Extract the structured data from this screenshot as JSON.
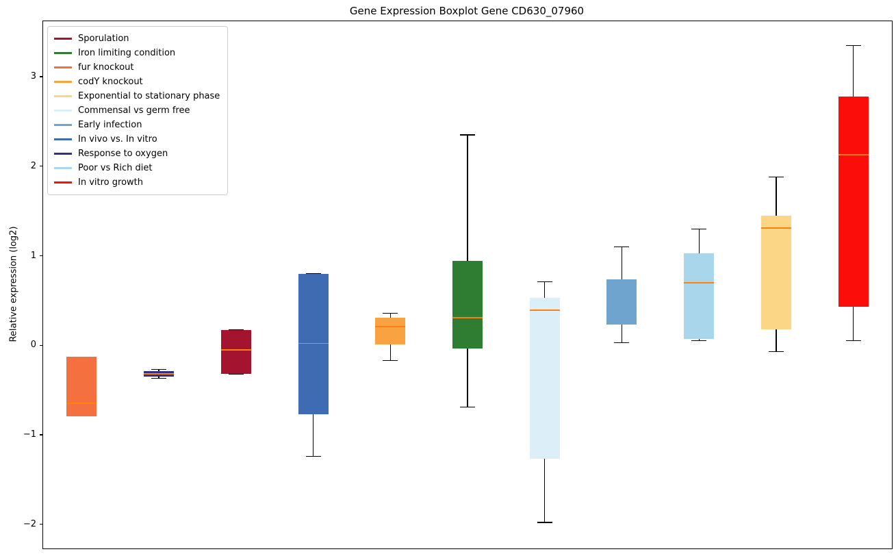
{
  "chart_data": {
    "type": "boxplot",
    "title": "Gene Expression Boxplot Gene CD630_07960",
    "ylabel": "Relative expression (log2)",
    "ylim": [
      -2.27,
      3.62
    ],
    "yticks": [
      -2,
      -1,
      0,
      1,
      2,
      3
    ],
    "grid": false,
    "legend_position": "upper left",
    "median_color": "#ff7f0e",
    "whisker_color": "#000000",
    "legend": [
      {
        "label": "Sporulation",
        "color": "#A41330"
      },
      {
        "label": "Iron limiting condition",
        "color": "#2E7D32"
      },
      {
        "label": "fur knockout",
        "color": "#F4713F"
      },
      {
        "label": "codY knockout",
        "color": "#F9A242"
      },
      {
        "label": "Exponential to stationary phase",
        "color": "#FBD687"
      },
      {
        "label": "Commensal vs germ free",
        "color": "#DCEFF8"
      },
      {
        "label": "Early infection",
        "color": "#6FA4CE"
      },
      {
        "label": "In vivo vs. In vitro",
        "color": "#3F6BB3"
      },
      {
        "label": "Response to oxygen",
        "color": "#2F3187"
      },
      {
        "label": "Poor vs Rich diet",
        "color": "#AAD6EB"
      },
      {
        "label": "In vitro growth",
        "color": "#FB0D0A"
      }
    ],
    "boxes": [
      {
        "label": "fur knockout",
        "color": "#F4713F",
        "whisker_low": -0.79,
        "q1": -0.79,
        "median": -0.65,
        "q3": -0.13,
        "whisker_high": -0.13
      },
      {
        "label": "Response to oxygen",
        "color": "#2F3187",
        "whisker_low": -0.37,
        "q1": -0.35,
        "median": -0.32,
        "q3": -0.29,
        "whisker_high": -0.27
      },
      {
        "label": "Sporulation",
        "color": "#A41330",
        "whisker_low": -0.32,
        "q1": -0.32,
        "median": -0.05,
        "q3": 0.17,
        "whisker_high": 0.17
      },
      {
        "label": "In vivo vs. In vitro",
        "color": "#3F6BB3",
        "whisker_low": -1.24,
        "q1": -0.77,
        "median": 0.02,
        "q3": 0.8,
        "whisker_high": 0.8
      },
      {
        "label": "codY knockout",
        "color": "#F9A242",
        "whisker_low": -0.17,
        "q1": 0.01,
        "median": 0.21,
        "q3": 0.31,
        "whisker_high": 0.36
      },
      {
        "label": "Iron limiting condition",
        "color": "#2E7D32",
        "whisker_low": -0.69,
        "q1": -0.04,
        "median": 0.31,
        "q3": 0.94,
        "whisker_high": 2.35
      },
      {
        "label": "Commensal vs germ free",
        "color": "#DCEFF8",
        "whisker_low": -1.98,
        "q1": -1.27,
        "median": 0.39,
        "q3": 0.53,
        "whisker_high": 0.71
      },
      {
        "label": "Early infection",
        "color": "#6FA4CE",
        "whisker_low": 0.03,
        "q1": 0.23,
        "median": 0.42,
        "q3": 0.74,
        "whisker_high": 1.1
      },
      {
        "label": "Poor vs Rich diet",
        "color": "#AAD6EB",
        "whisker_low": 0.05,
        "q1": 0.07,
        "median": 0.7,
        "q3": 1.03,
        "whisker_high": 1.3
      },
      {
        "label": "Exponential to stationary phase",
        "color": "#FBD687",
        "whisker_low": -0.07,
        "q1": 0.18,
        "median": 1.31,
        "q3": 1.45,
        "whisker_high": 1.88
      },
      {
        "label": "In vitro growth",
        "color": "#FB0D0A",
        "whisker_low": 0.05,
        "q1": 0.43,
        "median": 2.13,
        "q3": 2.78,
        "whisker_high": 3.35
      }
    ]
  }
}
